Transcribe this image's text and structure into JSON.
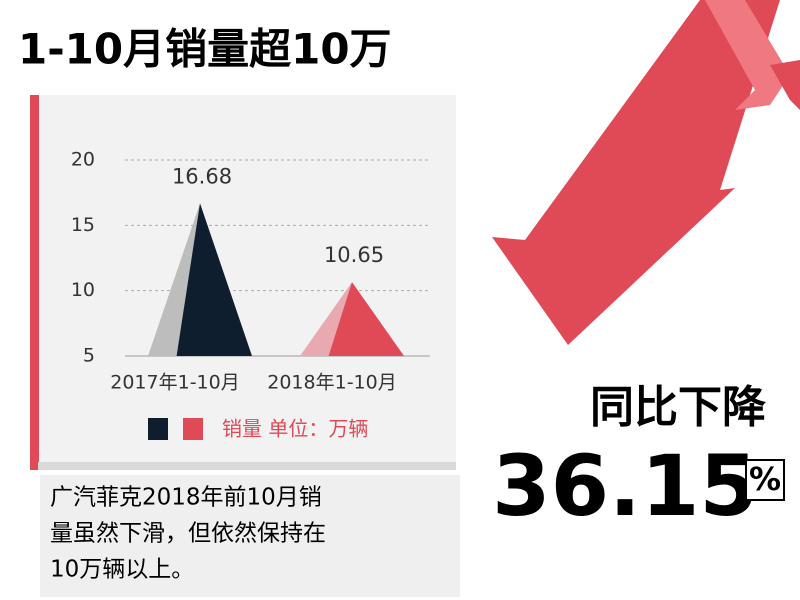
{
  "title": "1-10月销量超10万",
  "chart_data": {
    "type": "triangle",
    "categories": [
      "2017年1-10月",
      "2018年1-10月"
    ],
    "values": [
      16.68,
      10.65
    ],
    "colors": [
      "#0f1e2e",
      "#e04a57"
    ],
    "shade_colors": [
      "#bdbdbd",
      "#e9a9b0"
    ],
    "ylim": [
      5,
      20
    ],
    "yticks": [
      5,
      10,
      15,
      20
    ],
    "grid": true,
    "legend_text": "销量 单位：万辆"
  },
  "decline": {
    "label": "同比下降",
    "value": 36.15,
    "unit": "%"
  },
  "description": [
    "广汽菲克2018年前10月销",
    "量虽然下滑，但依然保持在",
    "10万辆以上。"
  ]
}
